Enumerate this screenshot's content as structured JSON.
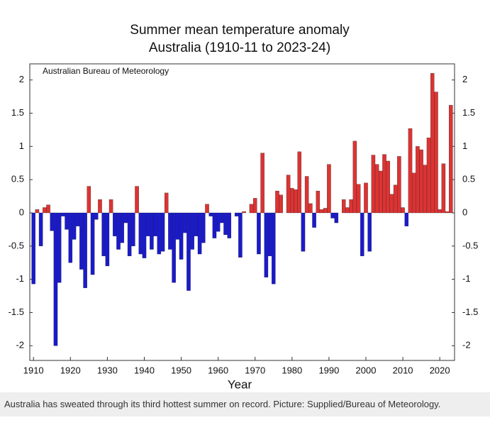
{
  "chart_data": {
    "type": "bar",
    "title": "Summer mean temperature anomaly",
    "subtitle": "Australia (1910-11 to 2023-24)",
    "annotation": "Australian Bureau of Meteorology",
    "x_label": "Year",
    "caption": "Australia has sweated through its third hottest summer on record. Picture: Supplied/Bureau of Meteorology.",
    "x": [
      1910,
      1911,
      1912,
      1913,
      1914,
      1915,
      1916,
      1917,
      1918,
      1919,
      1920,
      1921,
      1922,
      1923,
      1924,
      1925,
      1926,
      1927,
      1928,
      1929,
      1930,
      1931,
      1932,
      1933,
      1934,
      1935,
      1936,
      1937,
      1938,
      1939,
      1940,
      1941,
      1942,
      1943,
      1944,
      1945,
      1946,
      1947,
      1948,
      1949,
      1950,
      1951,
      1952,
      1953,
      1954,
      1955,
      1956,
      1957,
      1958,
      1959,
      1960,
      1961,
      1962,
      1963,
      1964,
      1965,
      1966,
      1967,
      1968,
      1969,
      1970,
      1971,
      1972,
      1973,
      1974,
      1975,
      1976,
      1977,
      1978,
      1979,
      1980,
      1981,
      1982,
      1983,
      1984,
      1985,
      1986,
      1987,
      1988,
      1989,
      1990,
      1991,
      1992,
      1993,
      1994,
      1995,
      1996,
      1997,
      1998,
      1999,
      2000,
      2001,
      2002,
      2003,
      2004,
      2005,
      2006,
      2007,
      2008,
      2009,
      2010,
      2011,
      2012,
      2013,
      2014,
      2015,
      2016,
      2017,
      2018,
      2019,
      2020,
      2021,
      2022,
      2023
    ],
    "values": [
      -1.07,
      0.05,
      -0.5,
      0.08,
      0.12,
      -0.27,
      -2.0,
      -1.05,
      -0.05,
      -0.25,
      -0.75,
      -0.4,
      -0.2,
      -0.85,
      -1.13,
      0.4,
      -0.93,
      -0.1,
      0.2,
      -0.65,
      -0.8,
      0.2,
      -0.35,
      -0.55,
      -0.45,
      -0.15,
      -0.65,
      -0.5,
      0.4,
      -0.62,
      -0.68,
      -0.35,
      -0.55,
      -0.35,
      -0.62,
      -0.58,
      0.3,
      -0.55,
      -1.05,
      -0.4,
      -0.7,
      -0.3,
      -1.17,
      -0.55,
      -0.35,
      -0.62,
      -0.45,
      0.13,
      -0.05,
      -0.38,
      -0.28,
      -0.15,
      -0.33,
      -0.38,
      0,
      -0.05,
      -0.67,
      0.02,
      0,
      0.13,
      0.22,
      -0.62,
      0.9,
      -0.97,
      -0.65,
      -1.07,
      0.33,
      0.27,
      0,
      0.57,
      0.37,
      0.35,
      0.92,
      -0.58,
      0.55,
      0.14,
      -0.22,
      0.33,
      0.05,
      0.07,
      0.73,
      -0.08,
      -0.15,
      0,
      0.2,
      0.08,
      0.2,
      1.08,
      0.43,
      -0.65,
      0.45,
      -0.58,
      0.87,
      0.73,
      0.63,
      0.88,
      0.78,
      0.28,
      0.42,
      0.85,
      0.08,
      -0.2,
      1.27,
      0.6,
      1.0,
      0.95,
      0.72,
      1.13,
      2.1,
      1.82,
      0.05,
      0.74,
      0.02,
      1.62
    ],
    "positive_color": "#dd3333",
    "negative_color": "#1a1acc",
    "xlim": [
      1909,
      2024
    ],
    "xticks": [
      1910,
      1920,
      1930,
      1940,
      1950,
      1960,
      1970,
      1980,
      1990,
      2000,
      2010,
      2020
    ],
    "ylim": [
      -2.2,
      2.2
    ],
    "yticks": [
      2,
      1.5,
      1,
      0.5,
      0,
      -0.5,
      -1,
      -1.5,
      -2
    ]
  }
}
